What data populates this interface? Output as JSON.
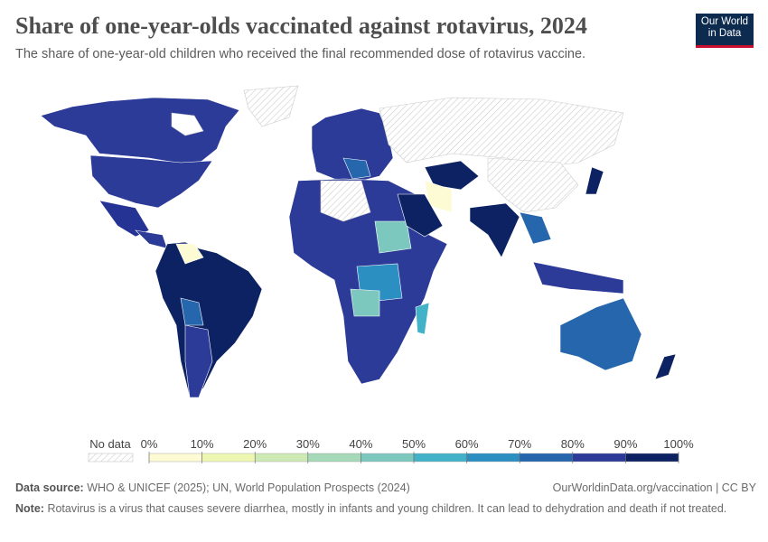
{
  "header": {
    "title": "Share of one-year-olds vaccinated against rotavirus, 2024",
    "subtitle": "The share of one-year-old children who received the final recommended dose of rotavirus vaccine.",
    "logo": [
      "Our World",
      "in Data"
    ]
  },
  "legend": {
    "no_data": "No data",
    "ticks": [
      {
        "value": 0,
        "label": "0%"
      },
      {
        "value": 10,
        "label": "10%"
      },
      {
        "value": 20,
        "label": "20%"
      },
      {
        "value": 30,
        "label": "30%"
      },
      {
        "value": 40,
        "label": "40%"
      },
      {
        "value": 50,
        "label": "50%"
      },
      {
        "value": 60,
        "label": "60%"
      },
      {
        "value": 70,
        "label": "70%"
      },
      {
        "value": 80,
        "label": "80%"
      },
      {
        "value": 90,
        "label": "90%"
      },
      {
        "value": 100,
        "label": "100%"
      }
    ],
    "colors": [
      "#fdfbd3",
      "#eef7b2",
      "#cdeab4",
      "#a5d9b8",
      "#7cc8bf",
      "#42b2c8",
      "#2b8fc1",
      "#2666ad",
      "#2c3a98",
      "#0c2263"
    ]
  },
  "footer": {
    "source_label": "Data source:",
    "source": "WHO & UNICEF (2025); UN, World Population Prospects (2024)",
    "url": "OurWorldinData.org/vaccination | CC BY",
    "note_label": "Note:",
    "note": "Rotavirus is a virus that causes severe diarrhea, mostly in infants and young children. It can lead to dehydration and death if not treated."
  }
}
